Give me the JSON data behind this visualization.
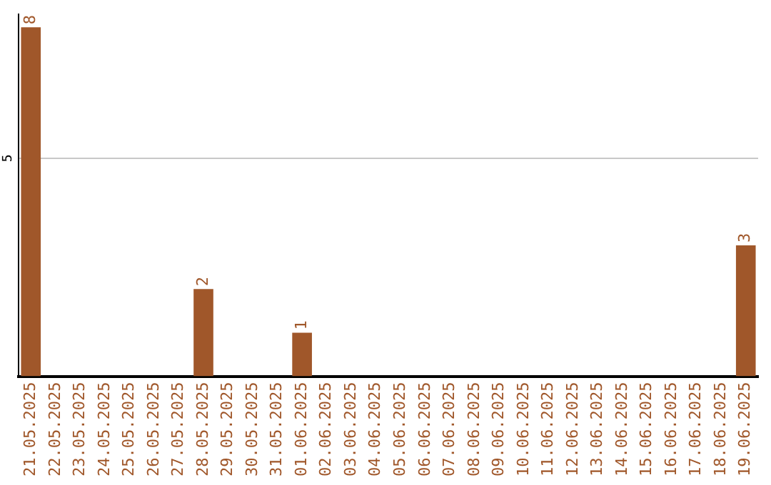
{
  "chart_data": {
    "type": "bar",
    "categories": [
      "21.05.2025",
      "22.05.2025",
      "23.05.2025",
      "24.05.2025",
      "25.05.2025",
      "26.05.2025",
      "27.05.2025",
      "28.05.2025",
      "29.05.2025",
      "30.05.2025",
      "31.05.2025",
      "01.06.2025",
      "02.06.2025",
      "03.06.2025",
      "04.06.2025",
      "05.06.2025",
      "06.06.2025",
      "07.06.2025",
      "08.06.2025",
      "09.06.2025",
      "10.06.2025",
      "11.06.2025",
      "12.06.2025",
      "13.06.2025",
      "14.06.2025",
      "15.06.2025",
      "16.06.2025",
      "17.06.2025",
      "18.06.2025",
      "19.06.2025"
    ],
    "values": [
      8,
      0,
      0,
      0,
      0,
      0,
      0,
      2,
      0,
      0,
      0,
      1,
      0,
      0,
      0,
      0,
      0,
      0,
      0,
      0,
      0,
      0,
      0,
      0,
      0,
      0,
      0,
      0,
      0,
      3
    ],
    "value_labels": [
      "8",
      null,
      null,
      null,
      null,
      null,
      null,
      "2",
      null,
      null,
      null,
      "1",
      null,
      null,
      null,
      null,
      null,
      null,
      null,
      null,
      null,
      null,
      null,
      null,
      null,
      null,
      null,
      null,
      null,
      "3"
    ],
    "color": "#a0572a",
    "ylim": [
      0,
      8.3
    ],
    "yticks": [
      5
    ],
    "grid": "y",
    "legend": false
  }
}
